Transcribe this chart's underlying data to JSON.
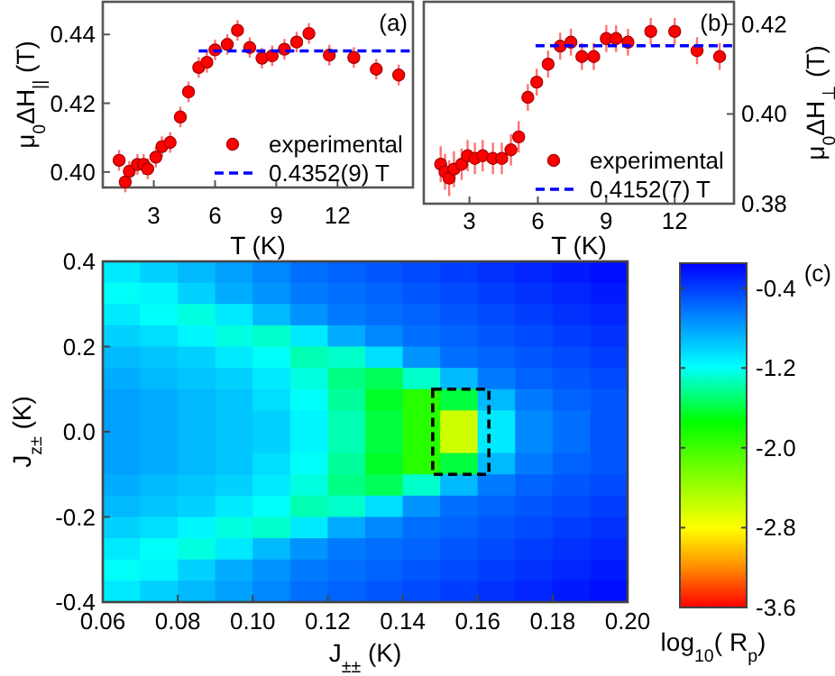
{
  "chart_data": [
    {
      "type": "scatter",
      "xlabel": "T (K)",
      "ylabel": "μ$_{0}$ΔH$_{||}$ (T)",
      "annotations": [
        "(a)"
      ],
      "xlim": [
        0.5,
        15.7
      ],
      "xticks": [
        3,
        6,
        9,
        12
      ],
      "ylim": [
        0.3955,
        0.4495
      ],
      "yticks": [
        {
          "value": 0.4,
          "label": "0.40"
        },
        {
          "value": 0.42,
          "label": "0.42"
        },
        {
          "value": 0.44,
          "label": "0.44"
        }
      ],
      "legend": "bottom right",
      "marker": "circle",
      "series": [
        {
          "name": "experimental",
          "type": "scatter",
          "color": "#ff0000",
          "x": [
            1.3,
            1.6,
            1.8,
            2.2,
            2.5,
            2.7,
            3.1,
            3.4,
            3.8,
            4.3,
            4.7,
            5.2,
            5.6,
            6.0,
            6.6,
            7.1,
            7.7,
            8.3,
            8.8,
            9.4,
            10.0,
            10.6,
            11.6,
            12.8,
            13.9,
            15.0
          ],
          "values": [
            0.4034,
            0.3971,
            0.4002,
            0.4022,
            0.4022,
            0.4009,
            0.4043,
            0.4074,
            0.4086,
            0.416,
            0.4233,
            0.4304,
            0.4319,
            0.4355,
            0.4371,
            0.4412,
            0.4362,
            0.4331,
            0.4338,
            0.4357,
            0.4378,
            0.4403,
            0.434,
            0.4333,
            0.4299,
            0.4282
          ],
          "errors": [
            0.003,
            0.003,
            0.003,
            0.003,
            0.003,
            0.003,
            0.003,
            0.003,
            0.003,
            0.003,
            0.003,
            0.003,
            0.003,
            0.003,
            0.003,
            0.003,
            0.003,
            0.003,
            0.003,
            0.003,
            0.003,
            0.003,
            0.003,
            0.003,
            0.003,
            0.003
          ]
        },
        {
          "name": "0.4352(9) T",
          "type": "line",
          "color": "#0000ff",
          "line_style": "dashed",
          "marker": "none",
          "x": [
            5.2,
            15.7
          ],
          "values": [
            0.4352,
            0.4352
          ]
        }
      ]
    },
    {
      "type": "scatter",
      "xlabel": "T (K)",
      "y2label": "μ$_{0}$ΔH$_{⊥}$ (T)",
      "annotations": [
        "(b)"
      ],
      "xlim": [
        1.0,
        14.6
      ],
      "xticks": [
        3,
        6,
        9,
        12
      ],
      "y2lim": [
        0.38,
        0.425
      ],
      "y2ticks": [
        {
          "value": 0.38,
          "label": "0.38"
        },
        {
          "value": 0.4,
          "label": "0.40"
        },
        {
          "value": 0.42,
          "label": "0.42"
        }
      ],
      "legend": "bottom right",
      "marker": "circle",
      "series": [
        {
          "name": "experimental",
          "type": "scatter",
          "axis": "y2",
          "color": "#ff0000",
          "x": [
            1.74,
            1.93,
            2.11,
            2.32,
            2.66,
            2.92,
            3.24,
            3.58,
            4.03,
            4.42,
            4.82,
            5.16,
            5.56,
            5.95,
            6.45,
            6.98,
            7.45,
            7.93,
            8.45,
            9.0,
            9.43,
            9.95,
            10.95,
            12.0,
            12.98,
            13.97
          ],
          "values": [
            0.3888,
            0.3871,
            0.3857,
            0.3877,
            0.3888,
            0.3907,
            0.3901,
            0.3907,
            0.3901,
            0.3901,
            0.392,
            0.3949,
            0.4037,
            0.4071,
            0.4111,
            0.4151,
            0.416,
            0.4128,
            0.4128,
            0.4168,
            0.4168,
            0.416,
            0.4184,
            0.4184,
            0.4141,
            0.4128
          ],
          "errors": [
            0.004,
            0.004,
            0.004,
            0.004,
            0.0035,
            0.0035,
            0.0035,
            0.0035,
            0.0035,
            0.0035,
            0.0035,
            0.0035,
            0.003,
            0.003,
            0.003,
            0.003,
            0.003,
            0.003,
            0.003,
            0.003,
            0.003,
            0.003,
            0.003,
            0.003,
            0.003,
            0.003
          ]
        },
        {
          "name": "0.4152(7) T",
          "type": "line",
          "axis": "y2",
          "color": "#0000ff",
          "line_style": "dashed",
          "marker": "none",
          "x": [
            5.9,
            14.6
          ],
          "values": [
            0.4152,
            0.4152
          ]
        }
      ]
    },
    {
      "type": "heatmap",
      "xlabel": "J$_{±±}$ (K)",
      "ylabel": "J$_{z±}$ (K)",
      "clabel": "log$_{10}$( R$_{p}$)",
      "annotations": [
        "(c)"
      ],
      "xlim": [
        0.06,
        0.2
      ],
      "xticks": [
        0.06,
        0.08,
        {
          "value": 0.1,
          "label": "0.10"
        },
        0.12,
        0.14,
        0.16,
        0.18,
        {
          "value": 0.2,
          "label": "0.20"
        }
      ],
      "ylim": [
        -0.4,
        0.4
      ],
      "yticks": [
        -0.4,
        -0.2,
        {
          "value": 0,
          "label": "0.0"
        },
        0.2,
        0.4
      ],
      "clim": [
        -3.6,
        -0.15
      ],
      "cticks": [
        -0.4,
        -1.2,
        {
          "value": -2.0,
          "label": "-2.0"
        },
        -2.8,
        -3.6
      ],
      "cells": [
        [
          -1.1,
          -1.0,
          -0.9,
          -0.8,
          -0.7,
          -0.6,
          -0.55,
          -0.5,
          -0.45,
          -0.4,
          -0.35,
          -0.3,
          -0.25,
          -0.2
        ],
        [
          -1.2,
          -1.15,
          -1.0,
          -0.85,
          -0.75,
          -0.65,
          -0.6,
          -0.55,
          -0.5,
          -0.45,
          -0.4,
          -0.35,
          -0.3,
          -0.25
        ],
        [
          -1.1,
          -1.2,
          -1.25,
          -1.1,
          -0.9,
          -0.75,
          -0.65,
          -0.6,
          -0.55,
          -0.5,
          -0.45,
          -0.4,
          -0.35,
          -0.3
        ],
        [
          -1.0,
          -1.05,
          -1.15,
          -1.25,
          -1.3,
          -1.1,
          -0.85,
          -0.7,
          -0.6,
          -0.55,
          -0.5,
          -0.45,
          -0.4,
          -0.35
        ],
        [
          -0.9,
          -0.95,
          -1.0,
          -1.1,
          -1.2,
          -1.35,
          -1.3,
          -1.05,
          -0.75,
          -0.6,
          -0.55,
          -0.5,
          -0.45,
          -0.4
        ],
        [
          -0.85,
          -0.9,
          -0.95,
          -1.0,
          -1.1,
          -1.25,
          -1.45,
          -1.55,
          -1.3,
          -0.9,
          -0.65,
          -0.55,
          -0.5,
          -0.45
        ],
        [
          -0.8,
          -0.85,
          -0.9,
          -0.95,
          -1.05,
          -1.2,
          -1.4,
          -1.65,
          -1.9,
          -1.6,
          -0.9,
          -0.65,
          -0.55,
          -0.5
        ],
        [
          -0.8,
          -0.85,
          -0.9,
          -0.95,
          -1.0,
          -1.15,
          -1.35,
          -1.6,
          -1.9,
          -2.6,
          -1.1,
          -0.7,
          -0.6,
          -0.5
        ],
        [
          -0.8,
          -0.85,
          -0.9,
          -0.95,
          -1.0,
          -1.15,
          -1.35,
          -1.6,
          -1.9,
          -2.6,
          -1.1,
          -0.7,
          -0.6,
          -0.5
        ],
        [
          -0.8,
          -0.85,
          -0.9,
          -0.95,
          -1.05,
          -1.2,
          -1.4,
          -1.65,
          -1.9,
          -1.6,
          -0.9,
          -0.65,
          -0.55,
          -0.5
        ],
        [
          -0.85,
          -0.9,
          -0.95,
          -1.0,
          -1.1,
          -1.25,
          -1.45,
          -1.55,
          -1.3,
          -0.9,
          -0.65,
          -0.55,
          -0.5,
          -0.45
        ],
        [
          -0.9,
          -0.95,
          -1.0,
          -1.1,
          -1.2,
          -1.35,
          -1.3,
          -1.05,
          -0.75,
          -0.6,
          -0.55,
          -0.5,
          -0.45,
          -0.4
        ],
        [
          -1.0,
          -1.05,
          -1.15,
          -1.25,
          -1.3,
          -1.1,
          -0.85,
          -0.7,
          -0.6,
          -0.55,
          -0.5,
          -0.45,
          -0.4,
          -0.35
        ],
        [
          -1.1,
          -1.2,
          -1.25,
          -1.1,
          -0.9,
          -0.75,
          -0.65,
          -0.6,
          -0.55,
          -0.5,
          -0.45,
          -0.4,
          -0.35,
          -0.3
        ],
        [
          -1.2,
          -1.15,
          -1.0,
          -0.85,
          -0.75,
          -0.65,
          -0.6,
          -0.55,
          -0.5,
          -0.45,
          -0.4,
          -0.35,
          -0.3,
          -0.25
        ],
        [
          -1.1,
          -1.0,
          -0.9,
          -0.8,
          -0.7,
          -0.6,
          -0.55,
          -0.5,
          -0.45,
          -0.4,
          -0.35,
          -0.3,
          -0.25,
          -0.2
        ]
      ]
    }
  ]
}
